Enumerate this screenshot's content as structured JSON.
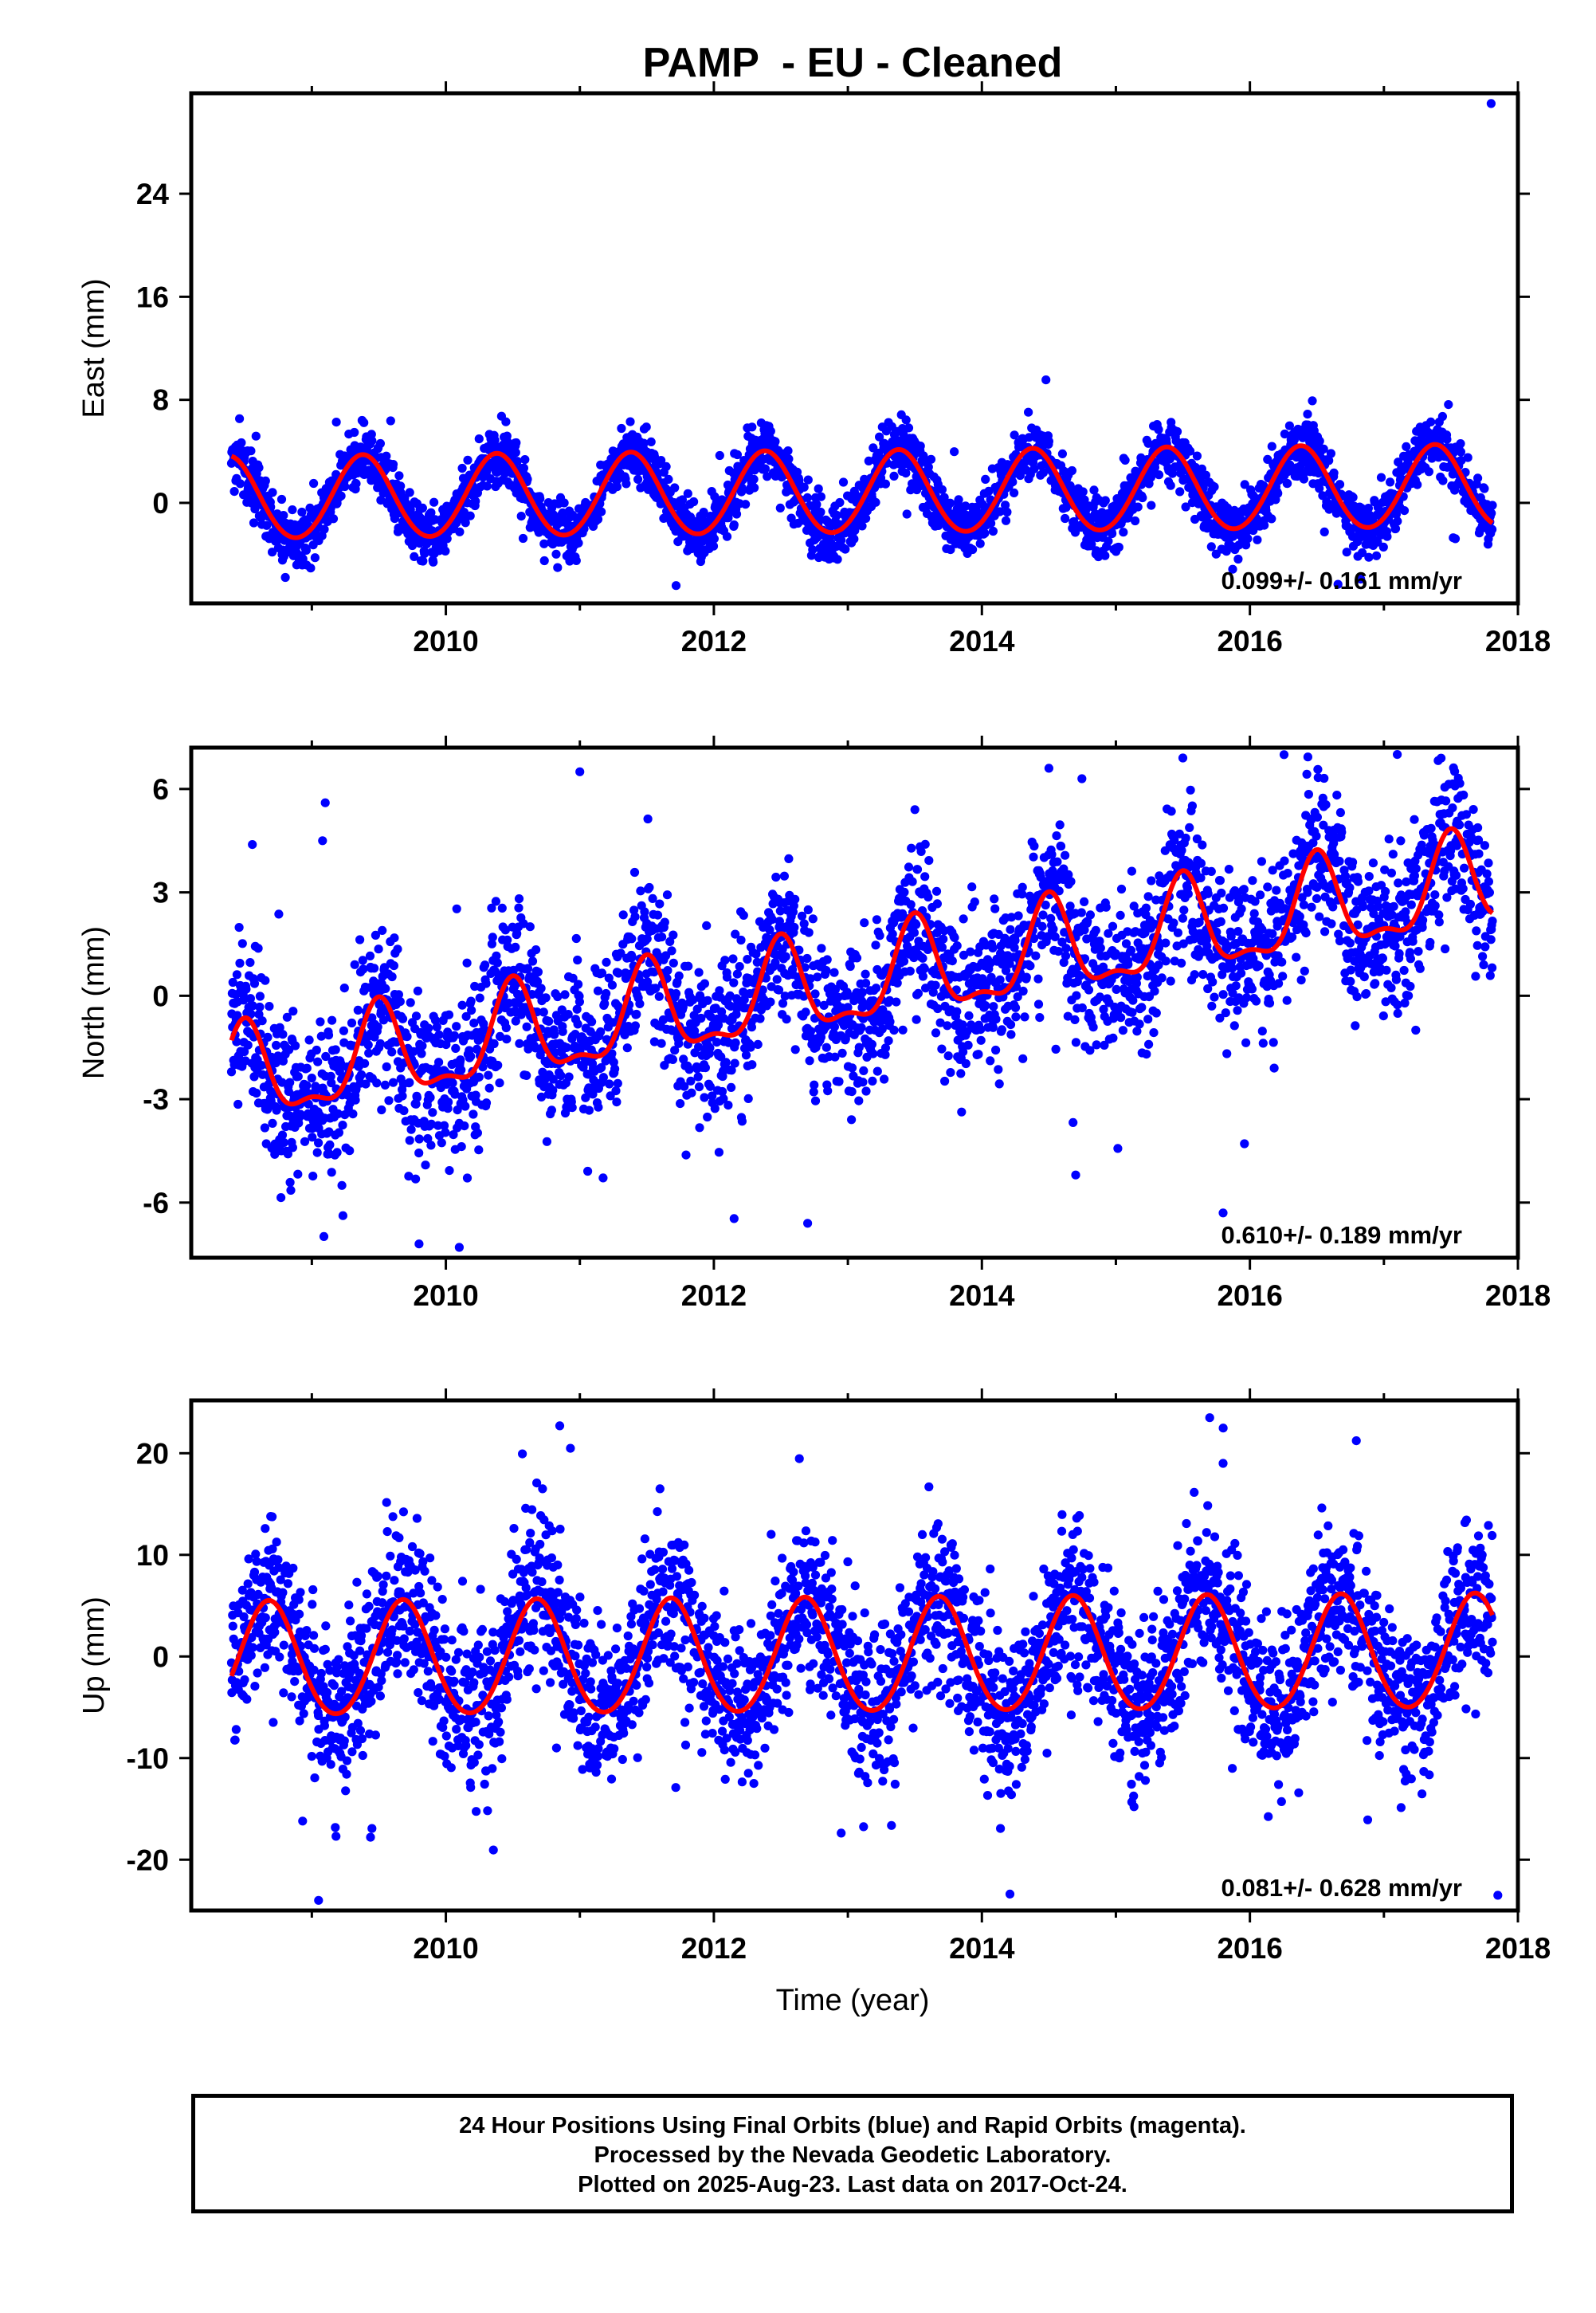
{
  "title": "PAMP  - EU - Cleaned",
  "xlabel": "Time (year)",
  "footer": {
    "line1": "24 Hour Positions Using Final Orbits (blue) and Rapid Orbits (magenta).",
    "line2": "Processed by the Nevada Geodetic Laboratory.",
    "line3": "Plotted on 2025-Aug-23. Last data on 2017-Oct-24."
  },
  "colors": {
    "points": "#0000ff",
    "fit": "#ff0000",
    "frame": "#000000"
  },
  "chart_data": [
    {
      "type": "scatter",
      "ylabel": "East (mm)",
      "xlim": [
        2008.1,
        2018.0
      ],
      "ylim": [
        -7.8,
        31.8
      ],
      "xticks": [
        2010,
        2012,
        2014,
        2016,
        2018
      ],
      "yticks": [
        0,
        8,
        16,
        24
      ],
      "rate_text": "0.099+/- 0.161 mm/yr",
      "series": [
        {
          "kind": "points",
          "x_range": [
            2008.4,
            2017.81
          ],
          "trend": {
            "offset": 0.3,
            "rate": 0.099
          },
          "annual_amplitude": 3.2,
          "annual_peak": 2009.38,
          "semiannual_amplitude": 0.15,
          "noise_sd": 1.1,
          "outliers": [
            {
              "x": 2017.8,
              "y": 31.0
            }
          ]
        },
        {
          "kind": "fit",
          "color": "#ff0000"
        }
      ]
    },
    {
      "type": "scatter",
      "ylabel": "North (mm)",
      "xlim": [
        2008.1,
        2018.0
      ],
      "ylim": [
        -7.6,
        7.2
      ],
      "xticks": [
        2010,
        2012,
        2014,
        2016,
        2018
      ],
      "yticks": [
        -6,
        -3,
        0,
        3,
        6
      ],
      "rate_text": "0.610+/- 0.189 mm/yr",
      "series": [
        {
          "kind": "points",
          "x_range": [
            2008.4,
            2017.81
          ],
          "trend": {
            "offset": -2.5,
            "rate": 0.61
          },
          "annual_amplitude": 1.3,
          "annual_peak": 2009.5,
          "semiannual_amplitude": 0.5,
          "noise_sd": 1.15,
          "outliers": [
            {
              "x": 2009.1,
              "y": 5.6
            },
            {
              "x": 2009.08,
              "y": 4.5
            },
            {
              "x": 2011.0,
              "y": 6.5
            },
            {
              "x": 2013.5,
              "y": 5.4
            },
            {
              "x": 2014.5,
              "y": 6.6
            },
            {
              "x": 2015.5,
              "y": 6.9
            },
            {
              "x": 2017.1,
              "y": 7.0
            },
            {
              "x": 2015.8,
              "y": -6.3
            },
            {
              "x": 2014.7,
              "y": -5.2
            },
            {
              "x": 2010.1,
              "y": -7.3
            },
            {
              "x": 2009.8,
              "y": -7.2
            },
            {
              "x": 2012.7,
              "y": -6.6
            }
          ]
        },
        {
          "kind": "fit",
          "color": "#ff0000"
        }
      ]
    },
    {
      "type": "scatter",
      "ylabel": "Up (mm)",
      "xlim": [
        2008.1,
        2018.0
      ],
      "ylim": [
        -25.0,
        25.2
      ],
      "xticks": [
        2010,
        2012,
        2014,
        2016,
        2018
      ],
      "yticks": [
        -20,
        -10,
        0,
        10,
        20
      ],
      "rate_text": "0.081+/- 0.628 mm/yr",
      "series": [
        {
          "kind": "points",
          "x_range": [
            2008.4,
            2017.81
          ],
          "trend": {
            "offset": -0.5,
            "rate": 0.081
          },
          "annual_amplitude": 5.6,
          "annual_peak": 2008.68,
          "semiannual_amplitude": 0.4,
          "noise_sd": 4.0,
          "outliers": [
            {
              "x": 2009.05,
              "y": -24.0
            },
            {
              "x": 2015.7,
              "y": 23.5
            },
            {
              "x": 2010.85,
              "y": 22.7
            },
            {
              "x": 2015.8,
              "y": 19.0
            },
            {
              "x": 2017.85,
              "y": -23.5
            }
          ]
        },
        {
          "kind": "fit",
          "color": "#ff0000"
        }
      ]
    }
  ]
}
